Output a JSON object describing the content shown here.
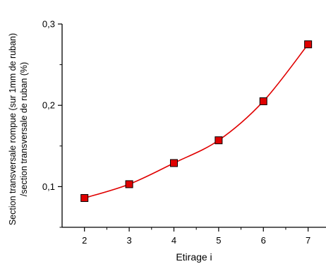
{
  "chart_data": {
    "type": "scatter",
    "title": "",
    "xlabel": "Etirage i",
    "ylabel_lines": [
      "Section transversale rompue (sur 1mm de ruban)",
      "/section transversale de ruban (%)"
    ],
    "xlim": [
      1.5,
      7.4
    ],
    "ylim": [
      0.05,
      0.3
    ],
    "x_ticks": [
      2,
      3,
      4,
      5,
      6,
      7
    ],
    "x_tick_labels": [
      "2",
      "3",
      "4",
      "5",
      "6",
      "7"
    ],
    "y_ticks": [
      0.1,
      0.2,
      0.3
    ],
    "y_tick_labels": [
      "0,1",
      "0,2",
      "0,3"
    ],
    "x_minor_ticks": [
      2.5,
      3.5,
      4.5,
      5.5,
      6.5
    ],
    "y_minor_ticks": [
      0.05,
      0.15,
      0.25
    ],
    "grid": false,
    "series": [
      {
        "x": [
          2,
          3,
          4,
          5,
          6,
          7
        ],
        "y": [
          0.086,
          0.103,
          0.129,
          0.157,
          0.205,
          0.275
        ],
        "marker": "square",
        "marker_color": "#e00000",
        "fit_line": true,
        "line_color": "#e00000"
      }
    ]
  }
}
